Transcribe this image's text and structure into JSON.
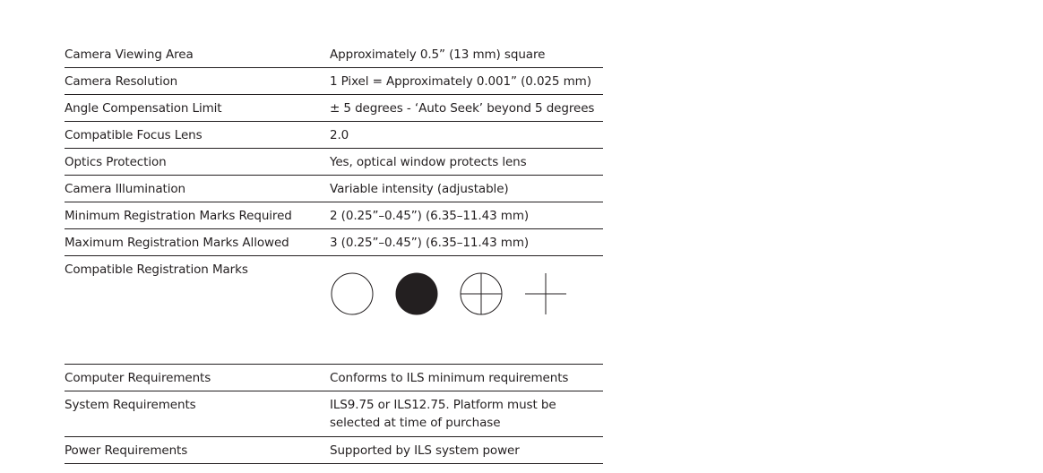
{
  "specs": [
    {
      "label": "Camera Viewing Area",
      "value": "Approximately 0.5” (13 mm) square"
    },
    {
      "label": "Camera Resolution",
      "value": "1 Pixel = Approximately 0.001” (0.025 mm)"
    },
    {
      "label": "Angle Compensation Limit",
      "value": "± 5 degrees - ‘Auto Seek’ beyond 5 degrees"
    },
    {
      "label": "Compatible Focus Lens",
      "value": "2.0"
    },
    {
      "label": "Optics Protection",
      "value": "Yes, optical window protects lens"
    },
    {
      "label": "Camera Illumination",
      "value": "Variable intensity (adjustable)"
    },
    {
      "label": "Minimum Registration Marks Required",
      "value": "2 (0.25”–0.45”) (6.35–11.43 mm)"
    },
    {
      "label": "Maximum Registration Marks Allowed",
      "value": "3 (0.25”–0.45”) (6.35–11.43 mm)"
    },
    {
      "label": "Compatible Registration Marks"
    },
    {
      "label": "Computer Requirements",
      "value": "Conforms to ILS minimum requirements"
    },
    {
      "label": "System Requirements",
      "value": "ILS9.75 or ILS12.75. Platform must be selected at time of purchase"
    },
    {
      "label": "Power Requirements",
      "value": "Supported by ILS system power"
    }
  ],
  "registration_marks": [
    "open-circle-icon",
    "filled-circle-icon",
    "crosshair-circle-icon",
    "crosshair-icon"
  ],
  "colors": {
    "text": "#231f20",
    "rule": "#231f20"
  }
}
